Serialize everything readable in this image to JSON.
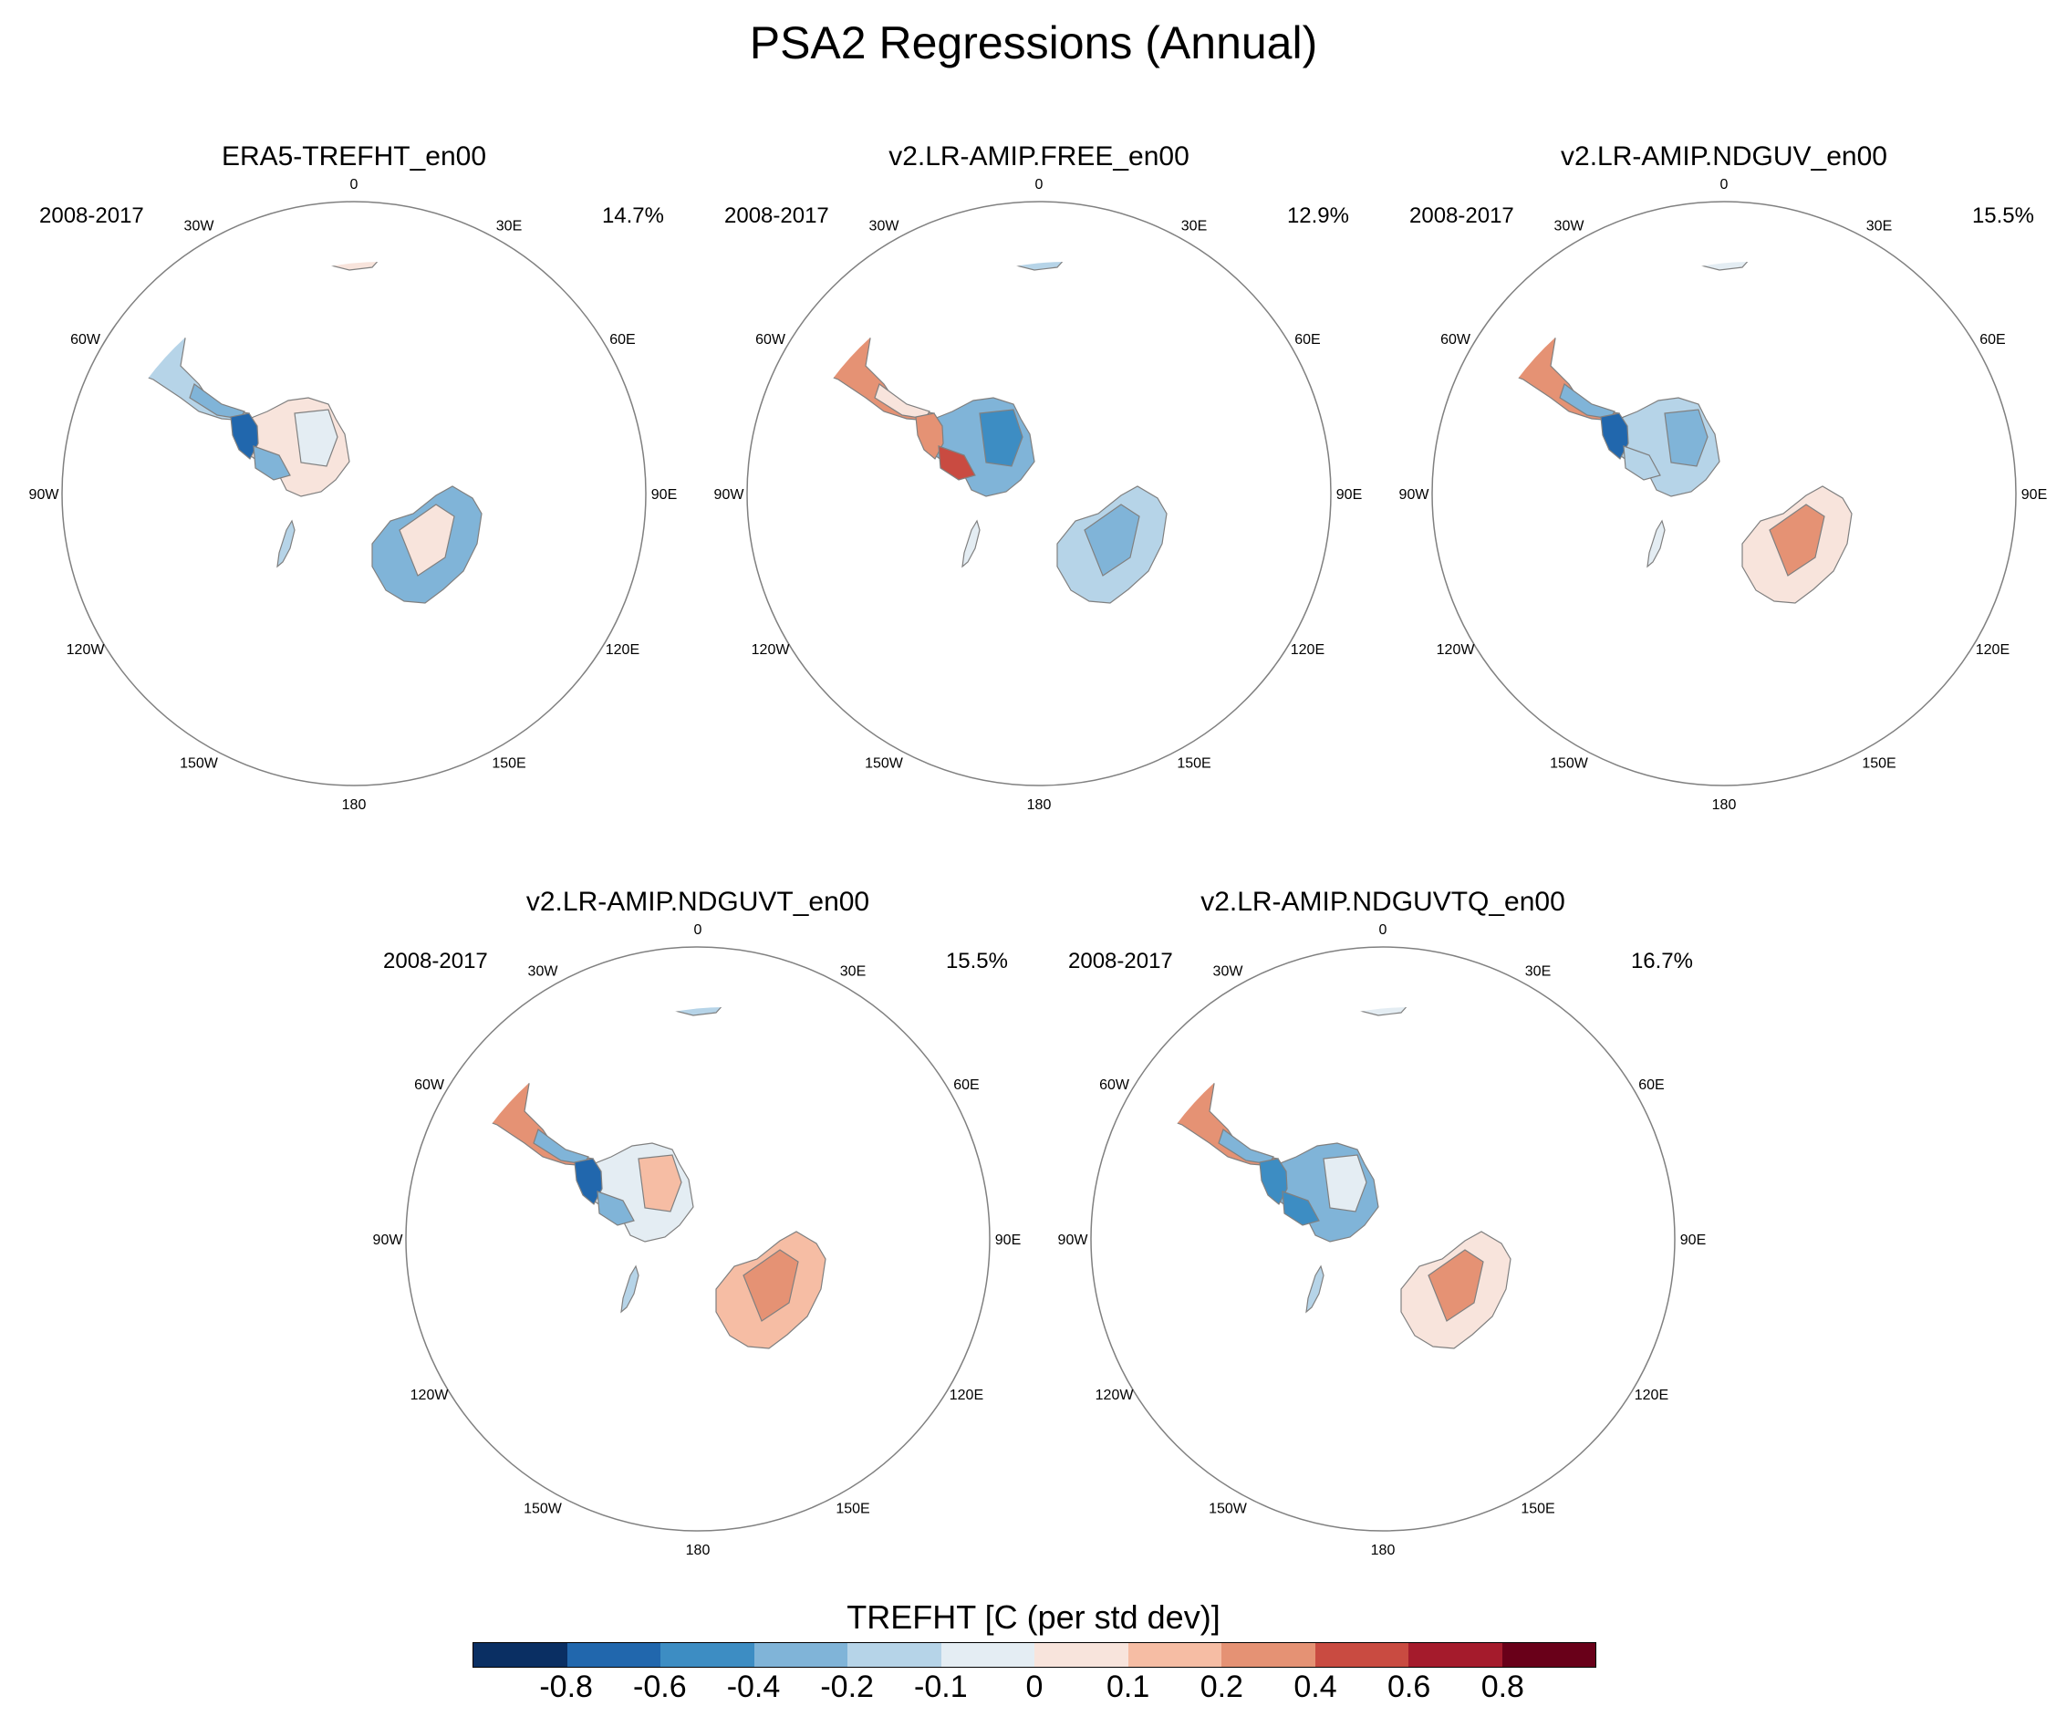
{
  "main_title": "PSA2 Regressions (Annual)",
  "colors": {
    "ocean": "#ffffff",
    "outline": "#808080",
    "levels": [
      "#0a2f63",
      "#2167ad",
      "#3d8dc3",
      "#80b4d8",
      "#b6d4e8",
      "#e4edf3",
      "#f8e4dc",
      "#f6bda4",
      "#e59274",
      "#c94b41",
      "#a51b2c",
      "#690019"
    ]
  },
  "panels": [
    {
      "title": "ERA5-TREFHT_en00",
      "period": "2008-2017",
      "pct": "14.7%",
      "fields": {
        "south_america": "d4",
        "south_america_core": "d7",
        "south_america_tip": "d3",
        "antarctica": "d6",
        "peninsula": "d1",
        "west_antarctica": "d3",
        "east_antarctica": "d5",
        "australia": "d3",
        "australia_core": "d6",
        "africa": "d6",
        "africa_core": "d3",
        "new_zealand": "d4"
      }
    },
    {
      "title": "v2.LR-AMIP.FREE_en00",
      "period": "2008-2017",
      "pct": "12.9%",
      "fields": {
        "south_america": "d8",
        "south_america_core": "d9",
        "south_america_tip": "d6",
        "antarctica": "d3",
        "peninsula": "d8",
        "west_antarctica": "d9",
        "east_antarctica": "d2",
        "australia": "d4",
        "australia_core": "d3",
        "africa": "d4",
        "africa_core": "d3",
        "new_zealand": "d5"
      }
    },
    {
      "title": "v2.LR-AMIP.NDGUV_en00",
      "period": "2008-2017",
      "pct": "15.5%",
      "fields": {
        "south_america": "d8",
        "south_america_core": "d7",
        "south_america_tip": "d3",
        "antarctica": "d4",
        "peninsula": "d1",
        "west_antarctica": "d4",
        "east_antarctica": "d3",
        "australia": "d6",
        "australia_core": "d8",
        "africa": "d5",
        "africa_core": "d6",
        "new_zealand": "d5"
      }
    },
    {
      "title": "v2.LR-AMIP.NDGUVT_en00",
      "period": "2008-2017",
      "pct": "15.5%",
      "fields": {
        "south_america": "d8",
        "south_america_core": "d7",
        "south_america_tip": "d3",
        "antarctica": "d5",
        "peninsula": "d1",
        "west_antarctica": "d3",
        "east_antarctica": "d7",
        "australia": "d7",
        "australia_core": "d8",
        "africa": "d4",
        "africa_core": "d5",
        "new_zealand": "d4"
      }
    },
    {
      "title": "v2.LR-AMIP.NDGUVTQ_en00",
      "period": "2008-2017",
      "pct": "16.7%",
      "fields": {
        "south_america": "d8",
        "south_america_core": "d7",
        "south_america_tip": "d3",
        "antarctica": "d3",
        "peninsula": "d2",
        "west_antarctica": "d2",
        "east_antarctica": "d5",
        "australia": "d6",
        "australia_core": "d8",
        "africa": "d5",
        "africa_core": "d4",
        "new_zealand": "d4"
      }
    }
  ],
  "lon_labels": [
    "0",
    "30E",
    "60E",
    "90E",
    "120E",
    "150E",
    "180",
    "150W",
    "120W",
    "90W",
    "60W",
    "30W"
  ],
  "colorbar": {
    "title": "TREFHT [C (per std dev)]",
    "ticks": [
      "-0.8",
      "-0.6",
      "-0.4",
      "-0.2",
      "-0.1",
      "0",
      "0.1",
      "0.2",
      "0.4",
      "0.6",
      "0.8"
    ]
  }
}
